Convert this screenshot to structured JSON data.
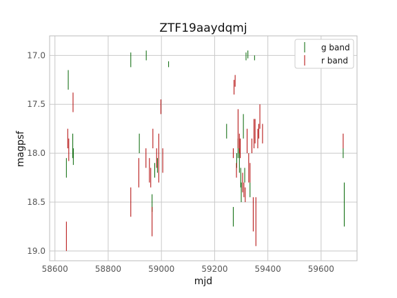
{
  "chart_data": {
    "type": "scatter",
    "title": "ZTF19aaydqmj",
    "xlabel": "mjd",
    "ylabel": "magpsf",
    "xlim": [
      58580,
      59735
    ],
    "ylim": [
      19.1,
      16.8
    ],
    "y_inverted": true,
    "grid": true,
    "legend_position": "top-right",
    "xticks": [
      58600,
      58800,
      59000,
      59200,
      59400,
      59600
    ],
    "yticks": [
      17.0,
      17.5,
      18.0,
      18.5,
      19.0
    ],
    "xtick_labels": [
      "58600",
      "58800",
      "59000",
      "59200",
      "59400",
      "59600"
    ],
    "ytick_labels": [
      "17.0",
      "17.5",
      "18.0",
      "18.5",
      "19.0"
    ],
    "series": [
      {
        "name": "g band",
        "color": "#006400",
        "points": [
          {
            "x": 58643,
            "y_low": 18.05,
            "y_high": 18.25
          },
          {
            "x": 58650,
            "y_low": 17.15,
            "y_high": 17.35
          },
          {
            "x": 58667,
            "y_low": 17.8,
            "y_high": 18.05
          },
          {
            "x": 58669,
            "y_low": 17.95,
            "y_high": 18.12
          },
          {
            "x": 58885,
            "y_low": 16.97,
            "y_high": 17.12
          },
          {
            "x": 58917,
            "y_low": 17.8,
            "y_high": 18.0
          },
          {
            "x": 58943,
            "y_low": 16.95,
            "y_high": 17.05
          },
          {
            "x": 58965,
            "y_low": 18.42,
            "y_high": 18.6
          },
          {
            "x": 58975,
            "y_low": 18.1,
            "y_high": 18.25
          },
          {
            "x": 58985,
            "y_low": 18.05,
            "y_high": 18.2
          },
          {
            "x": 59027,
            "y_low": 17.06,
            "y_high": 17.12
          },
          {
            "x": 59245,
            "y_low": 17.7,
            "y_high": 17.85
          },
          {
            "x": 59270,
            "y_low": 18.55,
            "y_high": 18.75
          },
          {
            "x": 59283,
            "y_low": 18.0,
            "y_high": 18.15
          },
          {
            "x": 59288,
            "y_low": 17.85,
            "y_high": 18.05
          },
          {
            "x": 59293,
            "y_low": 17.95,
            "y_high": 18.2
          },
          {
            "x": 59298,
            "y_low": 18.15,
            "y_high": 18.35
          },
          {
            "x": 59300,
            "y_low": 18.3,
            "y_high": 18.5
          },
          {
            "x": 59308,
            "y_low": 17.6,
            "y_high": 17.85
          },
          {
            "x": 59313,
            "y_low": 18.15,
            "y_high": 18.3
          },
          {
            "x": 59318,
            "y_low": 16.97,
            "y_high": 17.05
          },
          {
            "x": 59325,
            "y_low": 16.95,
            "y_high": 17.03
          },
          {
            "x": 59333,
            "y_low": 18.3,
            "y_high": 18.45
          },
          {
            "x": 59350,
            "y_low": 17.0,
            "y_high": 17.05
          },
          {
            "x": 59683,
            "y_low": 17.95,
            "y_high": 18.05
          },
          {
            "x": 59687,
            "y_low": 18.3,
            "y_high": 18.75
          }
        ]
      },
      {
        "name": "r band",
        "color": "#b00000",
        "points": [
          {
            "x": 58643,
            "y_low": 18.7,
            "y_high": 19.0
          },
          {
            "x": 58648,
            "y_low": 17.75,
            "y_high": 17.95
          },
          {
            "x": 58652,
            "y_low": 17.85,
            "y_high": 18.08
          },
          {
            "x": 58668,
            "y_low": 17.38,
            "y_high": 17.58
          },
          {
            "x": 58885,
            "y_low": 18.35,
            "y_high": 18.65
          },
          {
            "x": 58915,
            "y_low": 18.05,
            "y_high": 18.35
          },
          {
            "x": 58942,
            "y_low": 17.95,
            "y_high": 18.15
          },
          {
            "x": 58955,
            "y_low": 18.05,
            "y_high": 18.3
          },
          {
            "x": 58960,
            "y_low": 18.15,
            "y_high": 18.35
          },
          {
            "x": 58965,
            "y_low": 18.55,
            "y_high": 18.85
          },
          {
            "x": 58968,
            "y_low": 17.75,
            "y_high": 17.95
          },
          {
            "x": 58982,
            "y_low": 17.95,
            "y_high": 18.15
          },
          {
            "x": 58990,
            "y_low": 17.8,
            "y_high": 18.3
          },
          {
            "x": 58998,
            "y_low": 17.45,
            "y_high": 17.6
          },
          {
            "x": 59005,
            "y_low": 17.95,
            "y_high": 18.2
          },
          {
            "x": 59270,
            "y_low": 17.95,
            "y_high": 18.05
          },
          {
            "x": 59273,
            "y_low": 17.25,
            "y_high": 17.4
          },
          {
            "x": 59277,
            "y_low": 17.2,
            "y_high": 17.32
          },
          {
            "x": 59282,
            "y_low": 18.1,
            "y_high": 18.25
          },
          {
            "x": 59288,
            "y_low": 17.55,
            "y_high": 17.95
          },
          {
            "x": 59293,
            "y_low": 17.8,
            "y_high": 18.0
          },
          {
            "x": 59296,
            "y_low": 17.85,
            "y_high": 18.05
          },
          {
            "x": 59305,
            "y_low": 18.2,
            "y_high": 18.4
          },
          {
            "x": 59310,
            "y_low": 18.3,
            "y_high": 18.45
          },
          {
            "x": 59315,
            "y_low": 18.35,
            "y_high": 18.5
          },
          {
            "x": 59322,
            "y_low": 17.75,
            "y_high": 18.0
          },
          {
            "x": 59328,
            "y_low": 18.0,
            "y_high": 18.3
          },
          {
            "x": 59333,
            "y_low": 18.1,
            "y_high": 18.3
          },
          {
            "x": 59340,
            "y_low": 17.85,
            "y_high": 18.0
          },
          {
            "x": 59345,
            "y_low": 18.45,
            "y_high": 18.8
          },
          {
            "x": 59348,
            "y_low": 17.65,
            "y_high": 17.95
          },
          {
            "x": 59352,
            "y_low": 17.65,
            "y_high": 17.9
          },
          {
            "x": 59355,
            "y_low": 18.45,
            "y_high": 18.95
          },
          {
            "x": 59362,
            "y_low": 17.75,
            "y_high": 17.95
          },
          {
            "x": 59366,
            "y_low": 17.7,
            "y_high": 17.85
          },
          {
            "x": 59370,
            "y_low": 17.5,
            "y_high": 17.75
          },
          {
            "x": 59380,
            "y_low": 17.7,
            "y_high": 17.9
          },
          {
            "x": 59683,
            "y_low": 17.8,
            "y_high": 17.95
          }
        ]
      }
    ]
  }
}
